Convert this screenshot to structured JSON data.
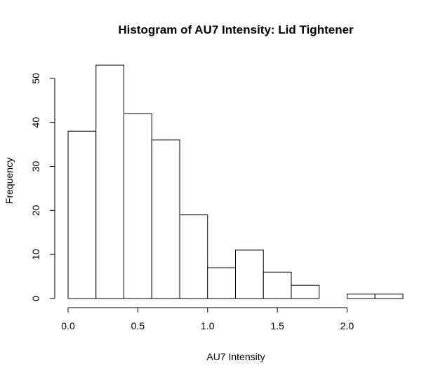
{
  "chart_data": {
    "type": "bar",
    "title": "Histogram of AU7 Intensity: Lid Tightener",
    "xlabel": "AU7 Intensity",
    "ylabel": "Frequency",
    "bin_edges": [
      0.0,
      0.2,
      0.4,
      0.6,
      0.8,
      1.0,
      1.2,
      1.4,
      1.6,
      1.8,
      2.0,
      2.2,
      2.4
    ],
    "values": [
      38,
      53,
      42,
      36,
      19,
      7,
      11,
      6,
      3,
      0,
      1,
      1
    ],
    "xlim": [
      0.0,
      2.4
    ],
    "ylim": [
      0,
      53
    ],
    "xticks": [
      0.0,
      0.5,
      1.0,
      1.5,
      2.0
    ],
    "xtick_labels": [
      "0.0",
      "0.5",
      "1.0",
      "1.5",
      "2.0"
    ],
    "yticks": [
      0,
      10,
      20,
      30,
      40,
      50
    ],
    "ytick_labels": [
      "0",
      "10",
      "20",
      "30",
      "40",
      "50"
    ],
    "grid": false,
    "bar_fill": "#ffffff",
    "bar_stroke": "#000000"
  }
}
